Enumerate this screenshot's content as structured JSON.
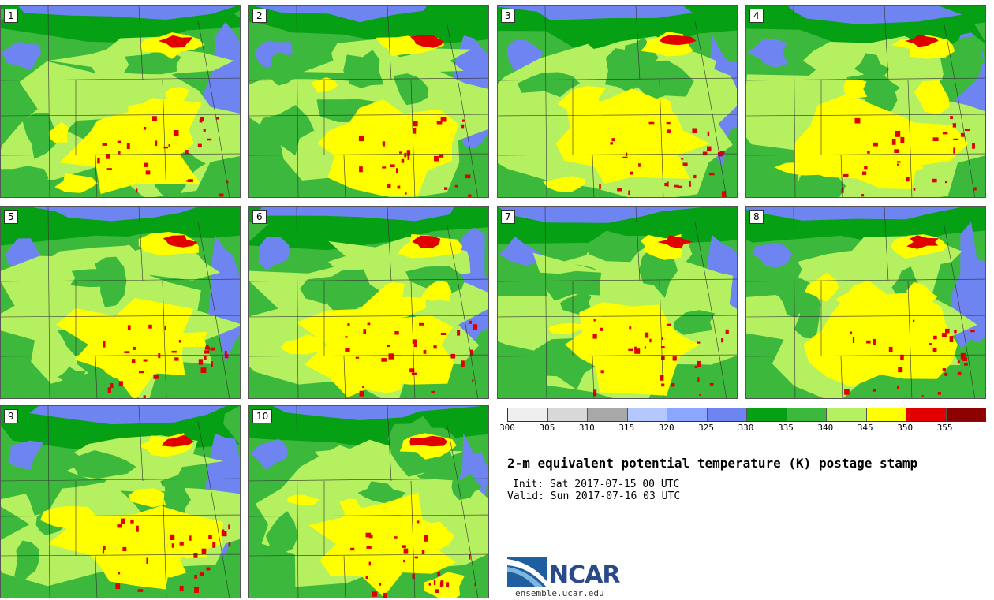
{
  "panels": [
    {
      "label": "1"
    },
    {
      "label": "2"
    },
    {
      "label": "3"
    },
    {
      "label": "4"
    },
    {
      "label": "5"
    },
    {
      "label": "6"
    },
    {
      "label": "7"
    },
    {
      "label": "8"
    },
    {
      "label": "9"
    },
    {
      "label": "10"
    }
  ],
  "colorbar": {
    "colors": [
      "#efefef",
      "#d8d8d8",
      "#a8a8a8",
      "#b4c8ff",
      "#8aa6ff",
      "#6e84f0",
      "#06a014",
      "#3cb83c",
      "#b4f060",
      "#ffff00",
      "#e00000",
      "#8c0000"
    ],
    "ticks": [
      "300",
      "305",
      "310",
      "315",
      "320",
      "325",
      "330",
      "335",
      "340",
      "345",
      "350",
      "355"
    ]
  },
  "title": "2-m equivalent potential temperature (K) postage stamp",
  "init": "Init: Sat 2017-07-15 00 UTC",
  "valid": "Valid: Sun 2017-07-16 03 UTC",
  "logo": {
    "text": "NCAR",
    "url": "ensemble.ucar.edu"
  }
}
